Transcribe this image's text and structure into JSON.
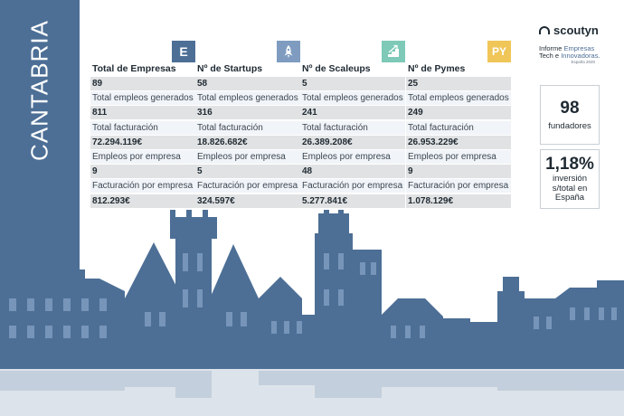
{
  "region": "CANTABRIA",
  "brand": {
    "name": "scoutyn",
    "report_line1": "Informe ",
    "report_line1_hl": "Empresas",
    "report_line2": "Tech e ",
    "report_line2_hl": "Innovadoras.",
    "edition": "España 2020"
  },
  "categories": [
    {
      "badge": "E",
      "badge_color": "#4d6f96",
      "title": "Total de Empresas",
      "count": "89",
      "emp_label": "Total empleos generados",
      "employees": "811",
      "fact_label": "Total facturación",
      "revenue": "72.294.119€",
      "epe_label": "Empleos por empresa",
      "emp_per_company": "9",
      "fpe_label": "Facturación por empresa",
      "rev_per_company": "812.293€"
    },
    {
      "badge": "",
      "badge_icon": "rocket-icon",
      "badge_color": "#7f9cc0",
      "title": "Nº de Startups",
      "count": "58",
      "emp_label": "Total empleos generados",
      "employees": "316",
      "fact_label": "Total facturación",
      "revenue": "18.826.682€",
      "epe_label": "Empleos por empresa",
      "emp_per_company": "5",
      "fpe_label": "Facturación por empresa",
      "rev_per_company": "324.597€"
    },
    {
      "badge": "",
      "badge_icon": "scale-stairs-icon",
      "badge_color": "#7ec9b8",
      "title": "Nº de Scaleups",
      "count": "5",
      "emp_label": "Total empleos generados",
      "employees": "241",
      "fact_label": "Total facturación",
      "revenue": "26.389.208€",
      "epe_label": "Empleos por empresa",
      "emp_per_company": "48",
      "fpe_label": "Facturación por empresa",
      "rev_per_company": "5.277.841€"
    },
    {
      "badge": "PY",
      "badge_color": "#f0c659",
      "title": "Nº de Pymes",
      "count": "25",
      "emp_label": "Total empleos generados",
      "employees": "249",
      "fact_label": "Total facturación",
      "revenue": "26.953.229€",
      "epe_label": "Empleos por empresa",
      "emp_per_company": "9",
      "fpe_label": "Facturación por empresa",
      "rev_per_company": "1.078.129€"
    }
  ],
  "stats": {
    "founders_value": "98",
    "founders_label": "fundadores",
    "investment_value": "1,18%",
    "investment_label_1": "inversión",
    "investment_label_2": "s/total en",
    "investment_label_3": "España"
  },
  "colors": {
    "band": "#4d6f96",
    "skyline": "#4d6f96",
    "value_row": "#e1e2e3",
    "label_row": "#f1f4f8"
  }
}
